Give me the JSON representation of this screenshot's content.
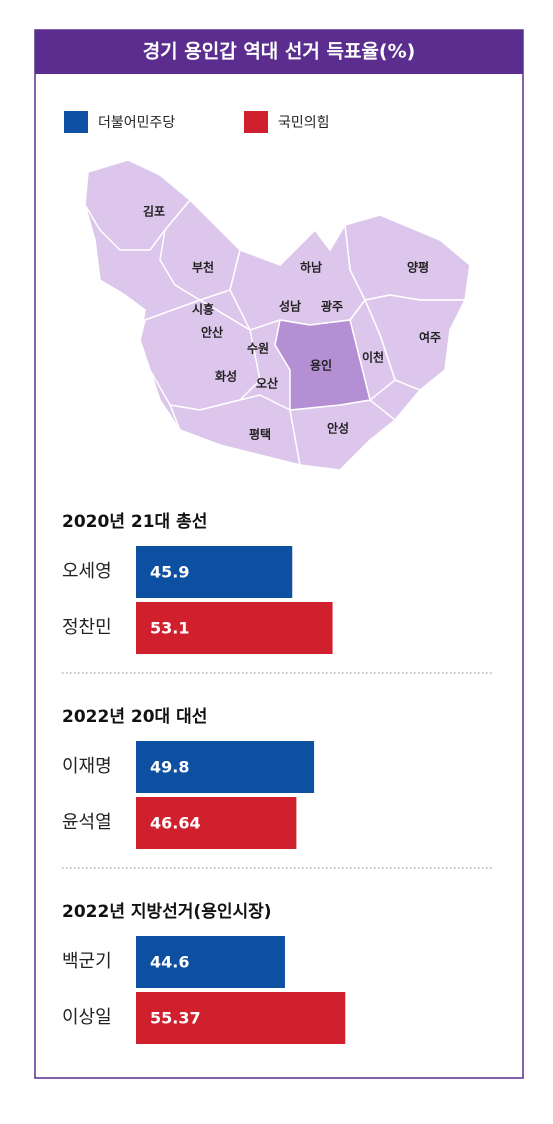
{
  "title": "경기 용인갑 역대 선거 득표율(%)",
  "legend": [
    {
      "name": "더불어민주당",
      "color": "#0d4fa0"
    },
    {
      "name": "국민의힘",
      "color": "#d0202e"
    }
  ],
  "map": {
    "regions": [
      "김포",
      "부천",
      "하남",
      "양평",
      "시흥",
      "성남",
      "광주",
      "안산",
      "수원",
      "용인",
      "이천",
      "여주",
      "화성",
      "오산",
      "평택",
      "안성"
    ]
  },
  "chart_data": [
    {
      "type": "bar",
      "title": "2020년 21대 총선",
      "categories": [
        "오세영",
        "정찬민"
      ],
      "values": [
        45.9,
        53.1
      ],
      "colors": [
        "#0d4fa0",
        "#d0202e"
      ]
    },
    {
      "type": "bar",
      "title": "2022년 20대 대선",
      "categories": [
        "이재명",
        "윤석열"
      ],
      "values": [
        49.8,
        46.64
      ],
      "colors": [
        "#0d4fa0",
        "#d0202e"
      ]
    },
    {
      "type": "bar",
      "title": "2022년 지방선거(용인시장)",
      "categories": [
        "백군기",
        "이상일"
      ],
      "values": [
        44.6,
        55.37
      ],
      "colors": [
        "#0d4fa0",
        "#d0202e"
      ]
    }
  ]
}
